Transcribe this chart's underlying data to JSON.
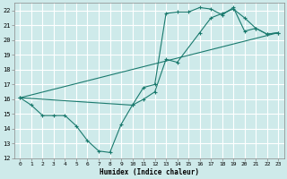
{
  "xlabel": "Humidex (Indice chaleur)",
  "xlim": [
    -0.5,
    23.5
  ],
  "ylim": [
    12,
    22.5
  ],
  "xticks": [
    0,
    1,
    2,
    3,
    4,
    5,
    6,
    7,
    8,
    9,
    10,
    11,
    12,
    13,
    14,
    15,
    16,
    17,
    18,
    19,
    20,
    21,
    22,
    23
  ],
  "yticks": [
    12,
    13,
    14,
    15,
    16,
    17,
    18,
    19,
    20,
    21,
    22
  ],
  "line_color": "#1a7a6e",
  "bg_color": "#ceeaea",
  "grid_color": "#ffffff",
  "line1_x": [
    0,
    1,
    2,
    3,
    4,
    5,
    6,
    7,
    8,
    9,
    10,
    11,
    12,
    13,
    14,
    15,
    16,
    17,
    18,
    19,
    20,
    21,
    22,
    23
  ],
  "line1_y": [
    16.1,
    15.6,
    14.9,
    14.9,
    14.9,
    14.2,
    13.2,
    12.5,
    12.4,
    14.3,
    15.6,
    16.8,
    17.0,
    21.8,
    21.9,
    21.9,
    22.2,
    22.1,
    21.7,
    22.2,
    20.6,
    20.8,
    20.4,
    20.5
  ],
  "line2_x": [
    0,
    10,
    11,
    12,
    13,
    14,
    16,
    17,
    18,
    19,
    20,
    21,
    22,
    23
  ],
  "line2_y": [
    16.1,
    15.6,
    16.0,
    16.5,
    18.7,
    18.5,
    20.5,
    21.5,
    21.8,
    22.1,
    21.5,
    20.8,
    20.4,
    20.5
  ],
  "line3_x": [
    0,
    23
  ],
  "line3_y": [
    16.1,
    20.5
  ]
}
